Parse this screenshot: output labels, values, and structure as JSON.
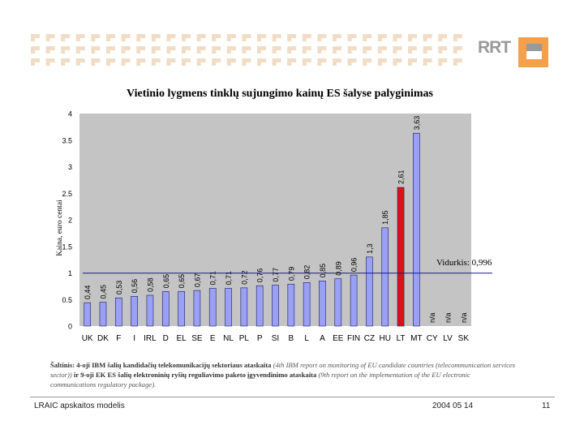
{
  "chart_data": {
    "type": "bar",
    "title": "Vietinio lygmens tinklų sujungimo kainų ES šalyse palyginimas",
    "ylabel": "Kaina, euro centai",
    "xlabel": "",
    "ylim": [
      0,
      4
    ],
    "yticks": [
      "0",
      "0.5",
      "1",
      "1.5",
      "2",
      "2.5",
      "3",
      "3.5",
      "4"
    ],
    "ytick_values": [
      0,
      0.5,
      1,
      1.5,
      2,
      2.5,
      3,
      3.5,
      4
    ],
    "categories": [
      "UK",
      "DK",
      "F",
      "I",
      "IRL",
      "D",
      "EL",
      "SE",
      "E",
      "NL",
      "PL",
      "P",
      "SI",
      "B",
      "L",
      "A",
      "EE",
      "FIN",
      "CZ",
      "HU",
      "LT",
      "MT",
      "CY",
      "LV",
      "SK"
    ],
    "values": [
      0.44,
      0.45,
      0.53,
      0.56,
      0.58,
      0.65,
      0.65,
      0.67,
      0.71,
      0.71,
      0.72,
      0.76,
      0.77,
      0.79,
      0.82,
      0.85,
      0.89,
      0.96,
      1.3,
      1.85,
      2.61,
      3.63,
      null,
      null,
      null
    ],
    "labels": [
      "0,44",
      "0,45",
      "0,53",
      "0,56",
      "0,58",
      "0,65",
      "0,65",
      "0,67",
      "0,71",
      "0,71",
      "0,72",
      "0,76",
      "0,77",
      "0,79",
      "0,82",
      "0,85",
      "0,89",
      "0,96",
      "1,3",
      "1,85",
      "2,61",
      "3,63",
      "n/a",
      "n/a",
      "n/a"
    ],
    "highlight_category": "LT",
    "average": {
      "value": 0.996,
      "label": "Vidurkis: 0,996"
    },
    "grid": false,
    "colors": {
      "bar": "#9aa0f4",
      "bar_edge": "#1a1a66",
      "highlight": "#dd1111",
      "plot_bg": "#c4c4c4",
      "average_line": "#1a1a88"
    }
  },
  "source": {
    "bold_1": "Šaltinis: 4-oji IBM šalių kandidačių telekomunikacijų sektoriaus ataskaita",
    "italic_1": "(4th IBM report on monitoring of EU candidate countries (telecommunication services sector))",
    "bold_2": "ir 9-oji EK ES šalių elektroninių ryšių reguliavimo paketo įgyvendinimo ataskaita",
    "italic_2": "(9th report on the implementation of the EU electronic communications regulatory package)."
  },
  "footer": {
    "left": "LRAIC apskaitos modelis",
    "date": "2004 05 14",
    "page": "11"
  },
  "logo": {
    "text": "RRT"
  },
  "colors": {
    "pattern": "#f1ddc6",
    "logo_orange": "#f4a04f",
    "logo_gray": "#999999"
  }
}
